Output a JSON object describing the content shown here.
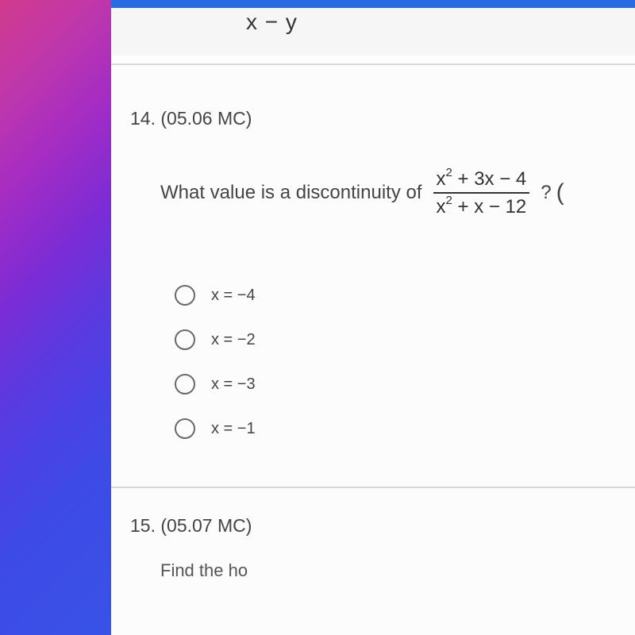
{
  "top_formula": "x − y",
  "question": {
    "number": "14. (05.06 MC)",
    "lead": "What value is a discontinuity of",
    "fraction": {
      "numerator_html": "x² + 3x − 4",
      "denominator_html": "x² + x − 12"
    },
    "trailing": "?"
  },
  "options": [
    {
      "label": "x = −4"
    },
    {
      "label": "x = −2"
    },
    {
      "label": "x = −3"
    },
    {
      "label": "x = −1"
    }
  ],
  "next_question": {
    "number": "15. (05.07 MC)",
    "stub": "Find the ho"
  },
  "colors": {
    "blue_bar": "#2a6be0",
    "text": "#444444",
    "radio_border": "#6a6a6a",
    "divider": "#d6d6d6",
    "content_bg": "#fcfcfc"
  }
}
